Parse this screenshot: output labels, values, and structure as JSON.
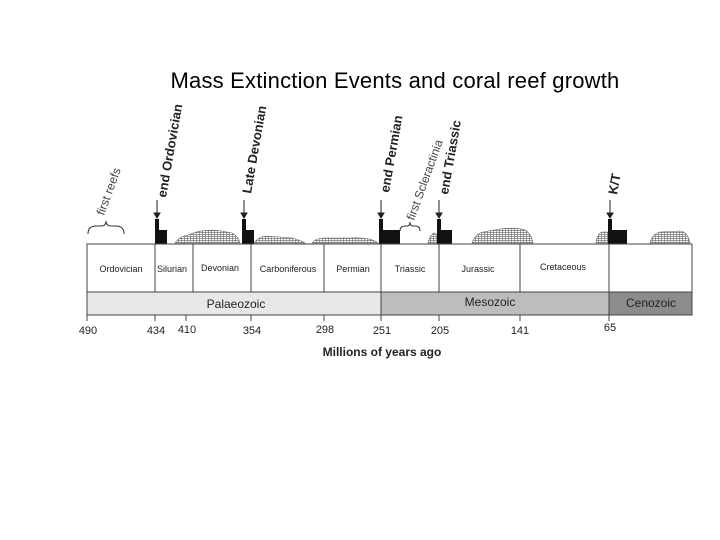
{
  "title": "Mass Extinction Events and coral reef growth",
  "axis_label": "Millions of years ago",
  "tick_labels": [
    "490",
    "434",
    "410",
    "354",
    "298",
    "251",
    "205",
    "141",
    "65"
  ],
  "periods": [
    "Ordovician",
    "Silurian",
    "Devonian",
    "Carboniferous",
    "Permian",
    "Triassic",
    "Jurassic",
    "Cretaceous"
  ],
  "eras": [
    "Palaeozoic",
    "Mesozoic",
    "Cenozoic"
  ],
  "events": [
    "end Ordovician",
    "Late Devonian",
    "end Permian",
    "end Triassic",
    "K/T"
  ],
  "annotations": [
    "first reefs",
    "first Scleractinia"
  ],
  "colors": {
    "palaeozoic": "#e8e8e8",
    "mesozoic": "#bdbdbd",
    "cenozoic": "#8c8c8c",
    "extinction_bar": "#111111"
  }
}
